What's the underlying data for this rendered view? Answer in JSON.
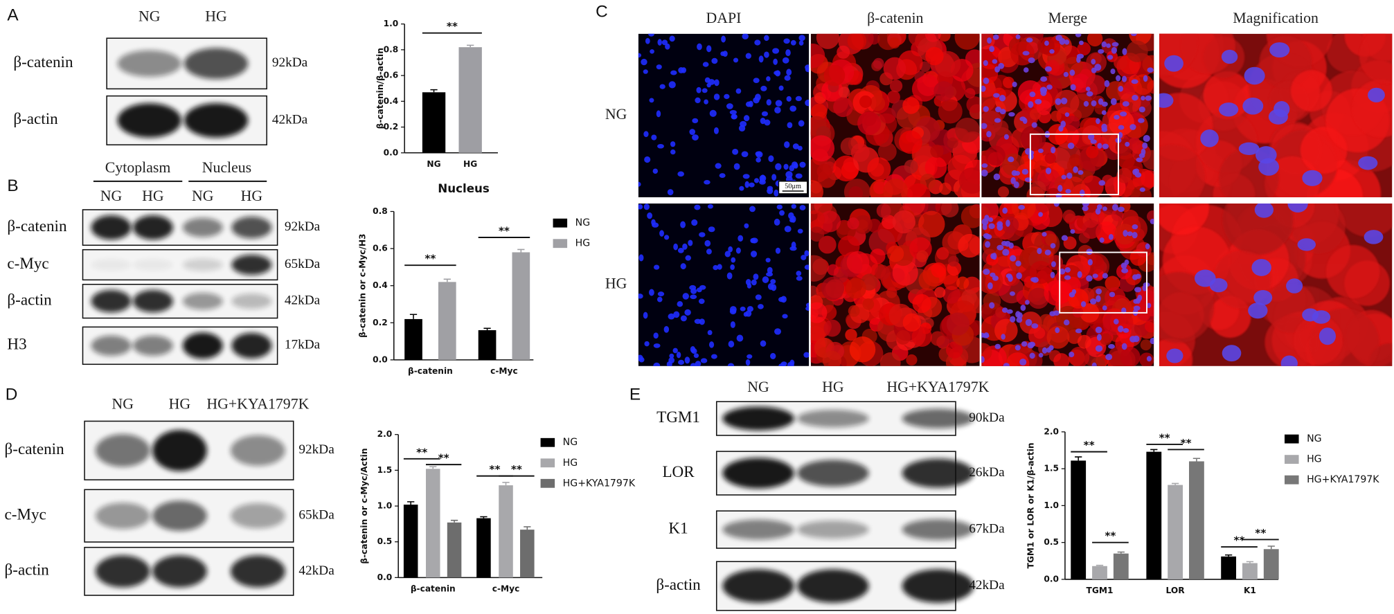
{
  "panels": {
    "A": {
      "label": "A",
      "lanes": [
        "NG",
        "HG"
      ],
      "blots": [
        {
          "protein": "β-catenin",
          "size": "92kDa"
        },
        {
          "protein": "β-actin",
          "size": "42kDa"
        }
      ]
    },
    "B": {
      "label": "B",
      "fractions": [
        "Cytoplasm",
        "Nucleus"
      ],
      "lanes": [
        "NG",
        "HG",
        "NG",
        "HG"
      ],
      "blots": [
        {
          "protein": "β-catenin",
          "size": "92kDa"
        },
        {
          "protein": "c-Myc",
          "size": "65kDa"
        },
        {
          "protein": "β-actin",
          "size": "42kDa"
        },
        {
          "protein": "H3",
          "size": "17kDa"
        }
      ]
    },
    "C": {
      "label": "C",
      "columns": [
        "DAPI",
        "β-catenin",
        "Merge",
        "Magnification"
      ],
      "rows": [
        "NG",
        "HG"
      ],
      "scale_bar": "50μm"
    },
    "D": {
      "label": "D",
      "lanes": [
        "NG",
        "HG",
        "HG+KYA1797K"
      ],
      "blots": [
        {
          "protein": "β-catenin",
          "size": "92kDa"
        },
        {
          "protein": "c-Myc",
          "size": "65kDa"
        },
        {
          "protein": "β-actin",
          "size": "42kDa"
        }
      ]
    },
    "E": {
      "label": "E",
      "lanes": [
        "NG",
        "HG",
        "HG+KYA1797K"
      ],
      "blots": [
        {
          "protein": "TGM1",
          "size": "90kDa"
        },
        {
          "protein": "LOR",
          "size": "26kDa"
        },
        {
          "protein": "K1",
          "size": "67kDa"
        },
        {
          "protein": "β-actin",
          "size": "42kDa"
        }
      ]
    }
  },
  "chart_data": [
    {
      "type": "bar",
      "ylabel": "β-catenin/β-actin",
      "categories": [
        "NG",
        "HG"
      ],
      "values": [
        0.47,
        0.82
      ],
      "errors": [
        0.02,
        0.015
      ],
      "colors": [
        "#000000",
        "#9e9ea3"
      ],
      "ylim": [
        0,
        1.0
      ],
      "yticks": [
        {
          "value": 0,
          "label": "0.0"
        },
        0.2,
        0.4,
        0.6,
        0.8,
        {
          "value": 1.0,
          "label": "1.0"
        }
      ],
      "annotations": [
        "**"
      ]
    },
    {
      "type": "bar",
      "title": "Nucleus",
      "ylabel": "β-catenin or c-Myc/H3",
      "categories": [
        "β-catenin",
        "c-Myc"
      ],
      "series": [
        {
          "name": "NG",
          "color": "#000000",
          "values": [
            0.22,
            0.16
          ],
          "errors": [
            0.025,
            0.01
          ]
        },
        {
          "name": "HG",
          "color": "#a0a0a4",
          "values": [
            0.42,
            0.58
          ],
          "errors": [
            0.015,
            0.015
          ]
        }
      ],
      "ylim": [
        0,
        0.8
      ],
      "yticks": [
        {
          "value": 0,
          "label": "0.0"
        },
        0.2,
        0.4,
        0.6,
        0.8
      ],
      "annotations": [
        "**",
        "**"
      ]
    },
    {
      "type": "bar",
      "ylabel": "β-catenin or c-Myc/Actin",
      "categories": [
        "β-catenin",
        "c-Myc"
      ],
      "series": [
        {
          "name": "NG",
          "color": "#000000",
          "values": [
            1.02,
            0.83
          ],
          "errors": [
            0.04,
            0.02
          ]
        },
        {
          "name": "HG",
          "color": "#a8a8ab",
          "values": [
            1.52,
            1.29
          ],
          "errors": [
            0.03,
            0.04
          ]
        },
        {
          "name": "HG+KYA1797K",
          "color": "#6d6d6d",
          "values": [
            0.77,
            0.67
          ],
          "errors": [
            0.03,
            0.04
          ]
        }
      ],
      "ylim": [
        0,
        2.0
      ],
      "yticks": [
        {
          "value": 0,
          "label": "0.0"
        },
        0.5,
        {
          "value": 1.0,
          "label": "1.0"
        },
        1.5,
        {
          "value": 2.0,
          "label": "2.0"
        }
      ],
      "annotations": [
        "**",
        "**",
        "**",
        "**"
      ]
    },
    {
      "type": "bar",
      "ylabel": "TGM1 or LOR or K1/β-actin",
      "categories": [
        "TGM1",
        "LOR",
        "K1"
      ],
      "series": [
        {
          "name": "NG",
          "color": "#000000",
          "values": [
            1.61,
            1.73,
            0.31
          ],
          "errors": [
            0.05,
            0.03,
            0.02
          ]
        },
        {
          "name": "HG",
          "color": "#a8a8ab",
          "values": [
            0.18,
            1.28,
            0.22
          ],
          "errors": [
            0.01,
            0.02,
            0.02
          ]
        },
        {
          "name": "HG+KYA1797K",
          "color": "#777777",
          "values": [
            0.35,
            1.6,
            0.41
          ],
          "errors": [
            0.02,
            0.04,
            0.04
          ]
        }
      ],
      "ylim": [
        0,
        2.0
      ],
      "yticks": [
        {
          "value": 0,
          "label": "0.0"
        },
        0.5,
        {
          "value": 1.0,
          "label": "1.0"
        },
        1.5,
        {
          "value": 2.0,
          "label": "2.0"
        }
      ],
      "annotations": [
        "**",
        "**",
        "**",
        "**",
        "**",
        "**"
      ]
    }
  ]
}
